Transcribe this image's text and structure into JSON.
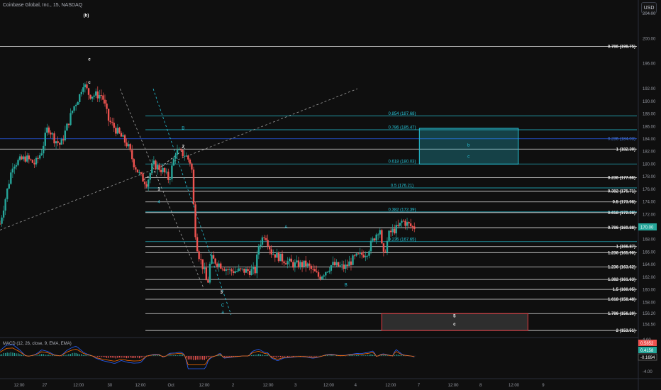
{
  "header": {
    "title": "Coinbase Global, Inc., 15, NASDAQ"
  },
  "currency": "USD",
  "colors": {
    "up": "#26a69a",
    "down": "#ef5350",
    "teal": "#26c6da",
    "white_line": "#e0e0e0",
    "blue_line": "#2962ff",
    "pink_box": "#e5393f"
  },
  "chart_data": {
    "type": "candlestick",
    "symbol": "COIN",
    "timeframe": "15",
    "exchange": "NASDAQ",
    "price_axis": {
      "min": 152.5,
      "max": 205,
      "ticks": [
        204,
        200,
        196,
        192,
        190,
        188,
        186,
        184,
        182,
        180,
        178,
        176,
        174,
        172,
        170,
        168,
        166,
        164,
        162,
        160,
        158,
        156.2,
        154.5
      ]
    },
    "time_axis": [
      {
        "label": "12:00",
        "x": 0.03
      },
      {
        "label": "27",
        "x": 0.07
      },
      {
        "label": "12:00",
        "x": 0.123
      },
      {
        "label": "30",
        "x": 0.172
      },
      {
        "label": "12:00",
        "x": 0.22
      },
      {
        "label": "Oct",
        "x": 0.268
      },
      {
        "label": "12:00",
        "x": 0.32
      },
      {
        "label": "2",
        "x": 0.365
      },
      {
        "label": "12:00",
        "x": 0.42
      },
      {
        "label": "3",
        "x": 0.463
      },
      {
        "label": "12:00",
        "x": 0.515
      },
      {
        "label": "4",
        "x": 0.557
      },
      {
        "label": "12:00",
        "x": 0.612
      },
      {
        "label": "7",
        "x": 0.656
      },
      {
        "label": "12:00",
        "x": 0.71
      },
      {
        "label": "8",
        "x": 0.753
      },
      {
        "label": "12:00",
        "x": 0.805
      },
      {
        "label": "9",
        "x": 0.851
      }
    ],
    "last_price": "170.00",
    "price_path": [
      [
        0.0,
        170.5
      ],
      [
        0.02,
        180
      ],
      [
        0.04,
        181
      ],
      [
        0.055,
        180
      ],
      [
        0.065,
        182
      ],
      [
        0.075,
        186
      ],
      [
        0.085,
        184
      ],
      [
        0.095,
        183
      ],
      [
        0.105,
        186
      ],
      [
        0.115,
        189
      ],
      [
        0.125,
        191
      ],
      [
        0.13,
        193
      ],
      [
        0.14,
        191
      ],
      [
        0.16,
        191
      ],
      [
        0.17,
        187
      ],
      [
        0.185,
        185
      ],
      [
        0.2,
        183
      ],
      [
        0.21,
        180
      ],
      [
        0.22,
        178
      ],
      [
        0.23,
        177
      ],
      [
        0.24,
        180
      ],
      [
        0.255,
        179
      ],
      [
        0.265,
        177.5
      ],
      [
        0.275,
        182
      ],
      [
        0.29,
        181.5
      ],
      [
        0.3,
        180
      ],
      [
        0.305,
        170
      ],
      [
        0.31,
        166
      ],
      [
        0.32,
        163
      ],
      [
        0.325,
        160.5
      ],
      [
        0.33,
        165
      ],
      [
        0.345,
        164
      ],
      [
        0.36,
        163
      ],
      [
        0.38,
        163
      ],
      [
        0.4,
        163
      ],
      [
        0.405,
        167
      ],
      [
        0.415,
        169
      ],
      [
        0.425,
        166
      ],
      [
        0.44,
        165
      ],
      [
        0.46,
        164
      ],
      [
        0.48,
        164
      ],
      [
        0.5,
        162
      ],
      [
        0.52,
        164
      ],
      [
        0.54,
        163.5
      ],
      [
        0.555,
        165
      ],
      [
        0.575,
        166
      ],
      [
        0.585,
        168
      ],
      [
        0.595,
        170
      ],
      [
        0.6,
        165
      ],
      [
        0.61,
        169
      ],
      [
        0.625,
        170
      ],
      [
        0.63,
        171
      ],
      [
        0.645,
        170
      ],
      [
        0.652,
        169.9
      ]
    ],
    "levels_white": [
      {
        "label": "0.786 (198.75)",
        "price": 198.75
      },
      {
        "label": "1 (182.39)",
        "price": 182.39
      },
      {
        "label": "0.236 (177.86)",
        "price": 177.86
      },
      {
        "label": "0.382 (175.71)",
        "price": 175.71
      },
      {
        "label": "0.5 (173.98)",
        "price": 173.98
      },
      {
        "label": "0.618 (172.28)",
        "price": 172.28
      },
      {
        "label": "0.786 (169.88)",
        "price": 169.88
      },
      {
        "label": "1 (166.87)",
        "price": 166.87
      },
      {
        "label": "1.236 (165.90)",
        "price": 165.9
      },
      {
        "label": "1.236 (163.62)",
        "price": 163.62
      },
      {
        "label": "1.382 (161.63)",
        "price": 161.63
      },
      {
        "label": "1.5 (160.05)",
        "price": 160.05
      },
      {
        "label": "1.618 (158.48)",
        "price": 158.48
      },
      {
        "label": "1.786 (156.20)",
        "price": 156.2
      },
      {
        "label": "2 (153.51)",
        "price": 153.51
      }
    ],
    "levels_teal": [
      {
        "label": "0.854 (187.68)",
        "price": 187.68
      },
      {
        "label": "0.786 (185.47)",
        "price": 185.47
      },
      {
        "label": "0.618 (180.03)",
        "price": 180.03
      },
      {
        "label": "0.5 (176.21)",
        "price": 176.21
      },
      {
        "label": "0.382 (172.39)",
        "price": 172.39
      },
      {
        "label": "0.236 (167.65)",
        "price": 167.65
      }
    ],
    "levels_blue": [
      {
        "label": "0.236 (184.03)",
        "price": 184.03
      }
    ],
    "wave_labels": [
      {
        "text": "(b)",
        "x": 0.135,
        "price": 203.5,
        "style": "wave"
      },
      {
        "text": "c",
        "x": 0.14,
        "price": 196.5,
        "style": "wave"
      },
      {
        "text": "c",
        "x": 0.14,
        "price": 192.8,
        "style": "wave"
      },
      {
        "text": "B",
        "x": 0.287,
        "price": 185.5,
        "style": "wave-teal"
      },
      {
        "text": "2",
        "x": 0.287,
        "price": 182.6,
        "style": "wave"
      },
      {
        "text": "1",
        "x": 0.249,
        "price": 175.8,
        "style": "wave"
      },
      {
        "text": "4",
        "x": 0.249,
        "price": 173.8,
        "style": "wave-teal"
      },
      {
        "text": "3",
        "x": 0.347,
        "price": 159.4,
        "style": "wave"
      },
      {
        "text": "C",
        "x": 0.349,
        "price": 157.3,
        "style": "wave-teal"
      },
      {
        "text": "a",
        "x": 0.349,
        "price": 156.2,
        "style": "wave-teal"
      },
      {
        "text": "A",
        "x": 0.448,
        "price": 169.8,
        "style": "wave-teal"
      },
      {
        "text": "B",
        "x": 0.542,
        "price": 160.6,
        "style": "wave-teal"
      },
      {
        "text": "b",
        "x": 0.734,
        "price": 182.8,
        "style": "wave-teal"
      },
      {
        "text": "c",
        "x": 0.734,
        "price": 181.0,
        "style": "wave-teal"
      },
      {
        "text": "5",
        "x": 0.712,
        "price": 155.6,
        "style": "wave"
      },
      {
        "text": "c",
        "x": 0.712,
        "price": 154.3,
        "style": "wave"
      }
    ],
    "boxes": [
      {
        "x0": 0.657,
        "x1": 0.812,
        "p0": 185.7,
        "p1": 180.0,
        "color": "teal"
      },
      {
        "x0": 0.598,
        "x1": 0.827,
        "p0": 156.2,
        "p1": 153.5,
        "color": "pink"
      }
    ],
    "macd": {
      "label": "MACD (12, 26, close, 9, EMA, EMA)",
      "values": [
        "0.5852",
        "0.4158",
        "-0.1694"
      ],
      "axis_ticks": [
        "4.00",
        "-4.00"
      ]
    }
  }
}
